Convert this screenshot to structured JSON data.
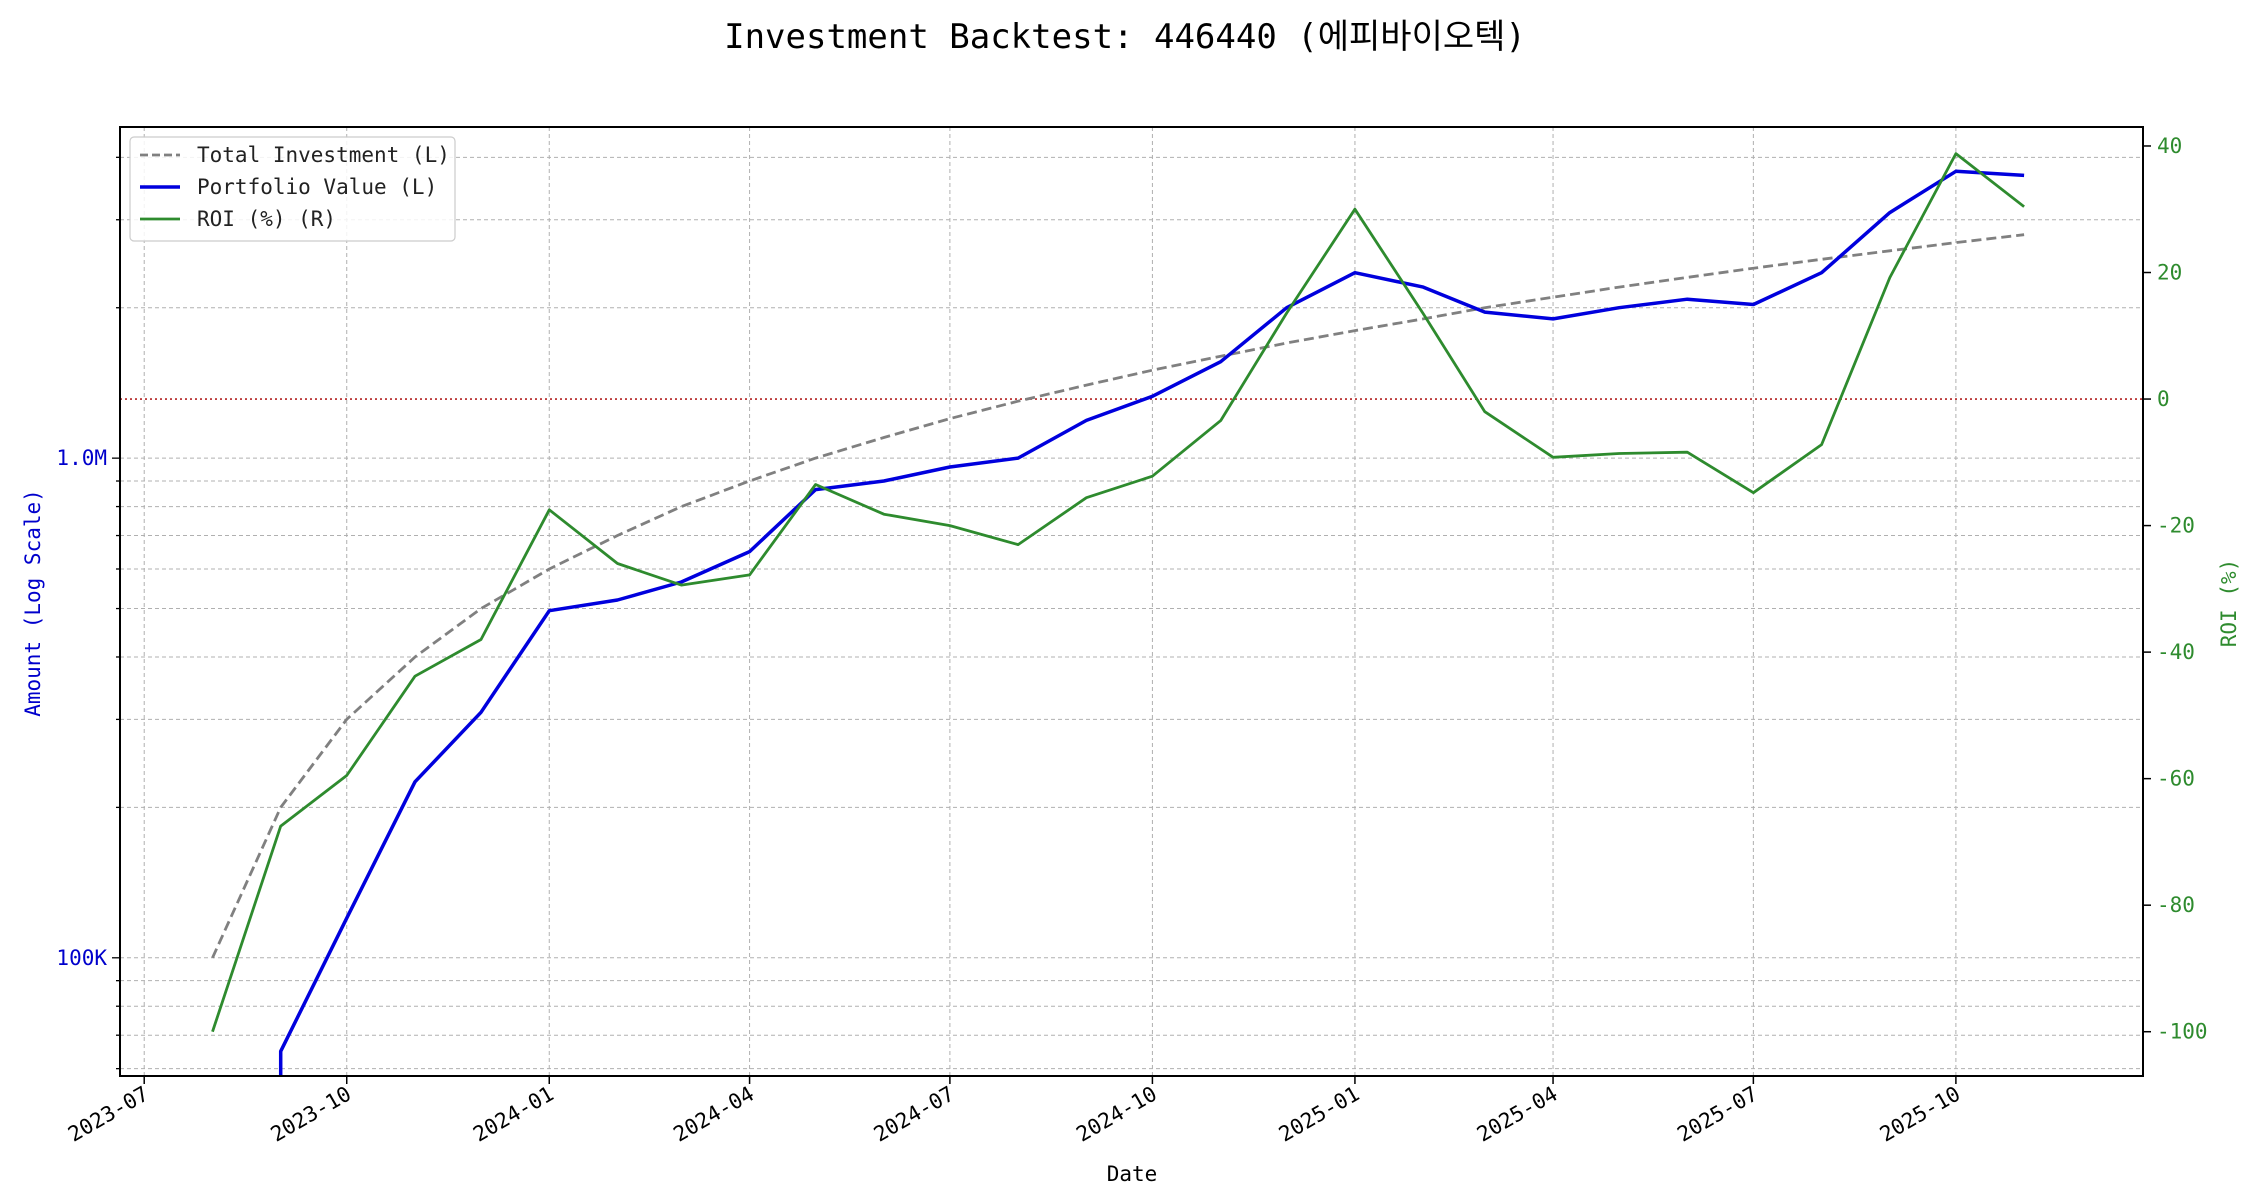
{
  "chart_data": {
    "type": "line",
    "title": "Investment Backtest: 446440 (에피바이오텍)",
    "xlabel": "Date",
    "ylabel_left": "Amount (Log Scale)",
    "ylabel_right": "ROI (%)",
    "left_axis_scale": "log",
    "left_ylim": [
      58000,
      4600000
    ],
    "right_ylim": [
      -107,
      43
    ],
    "xlim": [
      "2023-06-20",
      "2025-12-25"
    ],
    "grid": true,
    "legend_position": "top-left",
    "x_tick_labels": [
      "2023-07",
      "2023-10",
      "2024-01",
      "2024-04",
      "2024-07",
      "2024-10",
      "2025-01",
      "2025-04",
      "2025-07",
      "2025-10"
    ],
    "left_tick_labels": [
      "100K",
      "1.0M"
    ],
    "right_tick_labels": [
      "40",
      "20",
      "0",
      "-20",
      "-40",
      "-60",
      "-80",
      "-100"
    ],
    "reference_line": {
      "axis": "right",
      "value": 0,
      "style": "dotted",
      "color": "#b22222"
    },
    "x": [
      "2023-08-01",
      "2023-09-01",
      "2023-10-01",
      "2023-11-01",
      "2023-12-01",
      "2024-01-01",
      "2024-02-01",
      "2024-03-01",
      "2024-04-01",
      "2024-05-01",
      "2024-06-01",
      "2024-07-01",
      "2024-08-01",
      "2024-09-01",
      "2024-10-01",
      "2024-11-01",
      "2024-12-01",
      "2025-01-01",
      "2025-02-01",
      "2025-03-01",
      "2025-04-01",
      "2025-05-01",
      "2025-06-01",
      "2025-07-01",
      "2025-08-01",
      "2025-09-01",
      "2025-10-01",
      "2025-11-01"
    ],
    "series": [
      {
        "name": "Total Investment (L)",
        "axis": "left",
        "color": "#808080",
        "style": "dashed",
        "values": [
          100000,
          200000,
          300000,
          400000,
          500000,
          600000,
          700000,
          800000,
          900000,
          1000000,
          1100000,
          1200000,
          1300000,
          1400000,
          1500000,
          1600000,
          1700000,
          1800000,
          1900000,
          2000000,
          2100000,
          2200000,
          2300000,
          2400000,
          2500000,
          2600000,
          2700000,
          2800000
        ]
      },
      {
        "name": "Portfolio Value (L)",
        "axis": "left",
        "color": "#0000dd",
        "style": "solid",
        "values": [
          null,
          65000,
          120000,
          225000,
          310000,
          495000,
          520000,
          565000,
          650000,
          865000,
          900000,
          960000,
          1000000,
          1190000,
          1330000,
          1560000,
          2000000,
          2350000,
          2200000,
          1960000,
          1900000,
          2000000,
          2080000,
          2030000,
          2350000,
          3100000,
          3750000,
          3680000
        ]
      },
      {
        "name": "ROI (%) (R)",
        "axis": "right",
        "color": "#2e8b2e",
        "style": "solid",
        "values": [
          -100,
          -67.5,
          -59.5,
          -43.8,
          -38,
          -17.5,
          -26,
          -29.4,
          -27.8,
          -13.5,
          -18.2,
          -20,
          -23,
          -15.6,
          -12.2,
          -3.4,
          13.6,
          30,
          13.5,
          -2,
          -9.2,
          -8.6,
          -8.4,
          -14.8,
          -7.2,
          19.2,
          38.8,
          30.4
        ]
      }
    ]
  }
}
